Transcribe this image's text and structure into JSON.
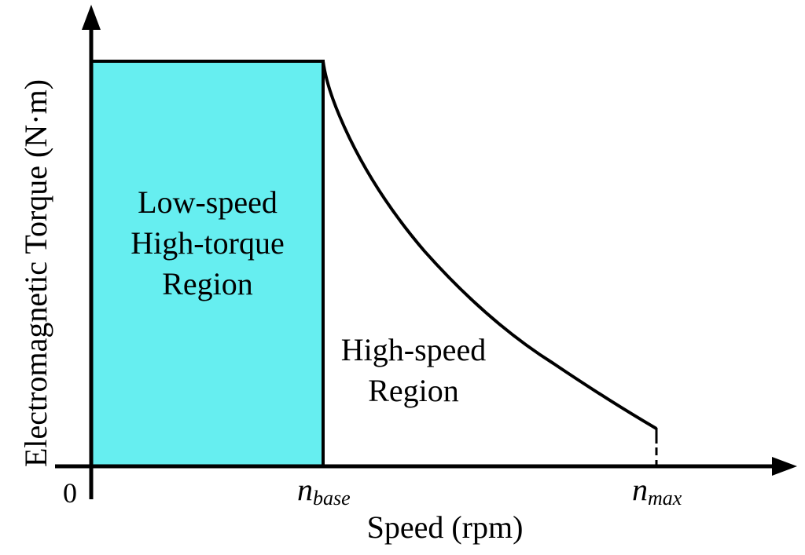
{
  "diagram": {
    "y_axis_label": "Electromagnetic Torque (N·m)",
    "x_axis_label": "Speed (rpm)",
    "origin_label": "0",
    "ticks": {
      "base": {
        "main": "n",
        "sub": "base"
      },
      "max": {
        "main": "n",
        "sub": "max"
      }
    },
    "regions": {
      "low": {
        "lines": [
          "Low-speed",
          "High-torque",
          "Region"
        ]
      },
      "high": {
        "lines": [
          "High-speed",
          "Region"
        ]
      }
    },
    "colors": {
      "low_region_fill": "#66EEF0",
      "lines": "#000000",
      "background": "#FFFFFF"
    }
  }
}
